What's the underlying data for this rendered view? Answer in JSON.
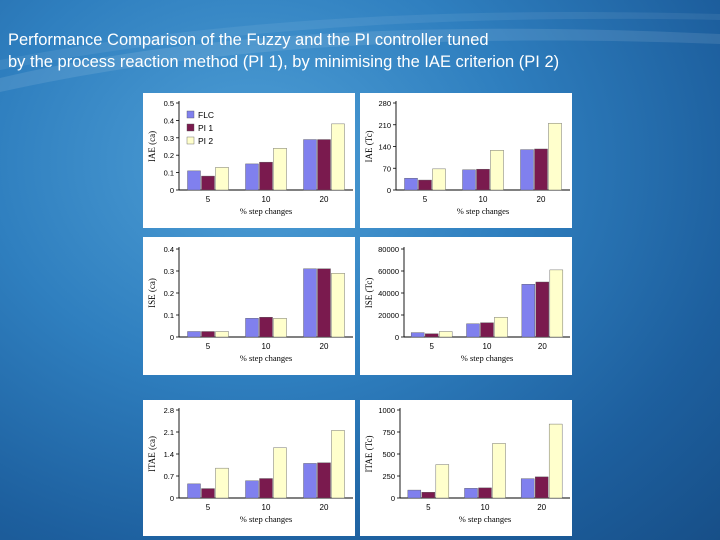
{
  "slide": {
    "title_line1": "Performance Comparison of the Fuzzy and the PI controller tuned",
    "title_line2": "by the process reaction method (PI 1), by minimising the IAE criterion (PI 2)"
  },
  "colors": {
    "FLC": "#8080ee",
    "PI 1": "#7a1a4e",
    "PI 2": "#ffffcc"
  },
  "chart_data": [
    {
      "type": "bar",
      "title": "",
      "xlabel": "% step changes",
      "ylabel": "IAE (ca)",
      "categories": [
        "5",
        "10",
        "20"
      ],
      "yticks": [
        "0",
        "0.1",
        "0.2",
        "0.3",
        "0.4",
        "0.5"
      ],
      "ylim": [
        0,
        0.5
      ],
      "legend": [
        "FLC",
        "PI 1",
        "PI 2"
      ],
      "legend_position": "top-left",
      "series": [
        {
          "name": "FLC",
          "values": [
            0.11,
            0.15,
            0.29
          ]
        },
        {
          "name": "PI 1",
          "values": [
            0.08,
            0.16,
            0.29
          ]
        },
        {
          "name": "PI 2",
          "values": [
            0.13,
            0.24,
            0.38
          ]
        }
      ]
    },
    {
      "type": "bar",
      "title": "",
      "xlabel": "% step changes",
      "ylabel": "IAE (Tc)",
      "categories": [
        "5",
        "10",
        "20"
      ],
      "yticks": [
        "0",
        "70",
        "140",
        "210",
        "280"
      ],
      "ylim": [
        0,
        280
      ],
      "series": [
        {
          "name": "FLC",
          "values": [
            38,
            65,
            130
          ]
        },
        {
          "name": "PI 1",
          "values": [
            32,
            67,
            132
          ]
        },
        {
          "name": "PI 2",
          "values": [
            68,
            128,
            215
          ]
        }
      ]
    },
    {
      "type": "bar",
      "title": "",
      "xlabel": "% step changes",
      "ylabel": "ISE (ca)",
      "categories": [
        "5",
        "10",
        "20"
      ],
      "yticks": [
        "0",
        "0.1",
        "0.2",
        "0.3",
        "0.4"
      ],
      "ylim": [
        0,
        0.4
      ],
      "series": [
        {
          "name": "FLC",
          "values": [
            0.025,
            0.085,
            0.31
          ]
        },
        {
          "name": "PI 1",
          "values": [
            0.025,
            0.09,
            0.31
          ]
        },
        {
          "name": "PI 2",
          "values": [
            0.025,
            0.085,
            0.29
          ]
        }
      ]
    },
    {
      "type": "bar",
      "title": "",
      "xlabel": "% step changes",
      "ylabel": "ISE (Tc)",
      "categories": [
        "5",
        "10",
        "20"
      ],
      "yticks": [
        "0",
        "20000",
        "40000",
        "60000",
        "80000"
      ],
      "ylim": [
        0,
        80000
      ],
      "series": [
        {
          "name": "FLC",
          "values": [
            4000,
            12000,
            48000
          ]
        },
        {
          "name": "PI 1",
          "values": [
            3000,
            13000,
            50000
          ]
        },
        {
          "name": "PI 2",
          "values": [
            5000,
            18000,
            61000
          ]
        }
      ]
    },
    {
      "type": "bar",
      "title": "",
      "xlabel": "% step changes",
      "ylabel": "ITAE (ca)",
      "categories": [
        "5",
        "10",
        "20"
      ],
      "yticks": [
        "0",
        "0.7",
        "1.4",
        "2.1",
        "2.8"
      ],
      "ylim": [
        0,
        2.8
      ],
      "series": [
        {
          "name": "FLC",
          "values": [
            0.45,
            0.55,
            1.1
          ]
        },
        {
          "name": "PI 1",
          "values": [
            0.3,
            0.62,
            1.12
          ]
        },
        {
          "name": "PI 2",
          "values": [
            0.95,
            1.6,
            2.15
          ]
        }
      ]
    },
    {
      "type": "bar",
      "title": "",
      "xlabel": "% step changes",
      "ylabel": "ITAE (Tc)",
      "categories": [
        "5",
        "10",
        "20"
      ],
      "yticks": [
        "0",
        "250",
        "500",
        "750",
        "1000"
      ],
      "ylim": [
        0,
        1000
      ],
      "series": [
        {
          "name": "FLC",
          "values": [
            90,
            110,
            220
          ]
        },
        {
          "name": "PI 1",
          "values": [
            65,
            115,
            240
          ]
        },
        {
          "name": "PI 2",
          "values": [
            380,
            620,
            840
          ]
        }
      ]
    }
  ]
}
